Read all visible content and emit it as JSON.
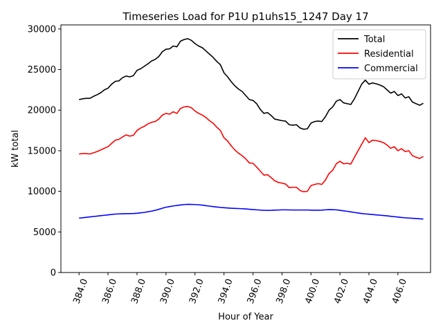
{
  "chart_data": {
    "type": "line",
    "title": "Timeseries Load for P1U p1uhs15_1247  Day 17",
    "xlabel": "Hour of Year",
    "ylabel": "kW total",
    "xlim": [
      382.75,
      408.25
    ],
    "ylim": [
      0,
      30500
    ],
    "xticks": [
      384,
      386,
      388,
      390,
      392,
      394,
      396,
      398,
      400,
      402,
      404,
      406
    ],
    "xtick_labels": [
      "384.0",
      "386.0",
      "388.0",
      "390.0",
      "392.0",
      "394.0",
      "396.0",
      "398.0",
      "400.0",
      "402.0",
      "404.0",
      "406.0"
    ],
    "yticks": [
      0,
      5000,
      10000,
      15000,
      20000,
      25000,
      30000
    ],
    "ytick_labels": [
      "0",
      "5000",
      "10000",
      "15000",
      "20000",
      "25000",
      "30000"
    ],
    "legend_position": "top-right",
    "x": [
      384.0,
      384.25,
      384.5,
      384.75,
      385.0,
      385.25,
      385.5,
      385.75,
      386.0,
      386.25,
      386.5,
      386.75,
      387.0,
      387.25,
      387.5,
      387.75,
      388.0,
      388.25,
      388.5,
      388.75,
      389.0,
      389.25,
      389.5,
      389.75,
      390.0,
      390.25,
      390.5,
      390.75,
      391.0,
      391.25,
      391.5,
      391.75,
      392.0,
      392.25,
      392.5,
      392.75,
      393.0,
      393.25,
      393.5,
      393.75,
      394.0,
      394.25,
      394.5,
      394.75,
      395.0,
      395.25,
      395.5,
      395.75,
      396.0,
      396.25,
      396.5,
      396.75,
      397.0,
      397.25,
      397.5,
      397.75,
      398.0,
      398.25,
      398.5,
      398.75,
      399.0,
      399.25,
      399.5,
      399.75,
      400.0,
      400.25,
      400.5,
      400.75,
      401.0,
      401.25,
      401.5,
      401.75,
      402.0,
      402.25,
      402.5,
      402.75,
      403.0,
      403.25,
      403.5,
      403.75,
      404.0,
      404.25,
      404.5,
      404.75,
      405.0,
      405.25,
      405.5,
      405.75,
      406.0,
      406.25,
      406.5,
      406.75,
      407.0,
      407.25,
      407.5,
      407.75
    ],
    "series": [
      {
        "name": "Total",
        "color": "#000000",
        "values": [
          21300,
          21400,
          21450,
          21450,
          21700,
          21900,
          22150,
          22500,
          22700,
          23200,
          23550,
          23600,
          24000,
          24200,
          24100,
          24250,
          24900,
          25100,
          25400,
          25700,
          26050,
          26250,
          26600,
          27200,
          27500,
          27550,
          27900,
          27800,
          28500,
          28700,
          28800,
          28600,
          28200,
          27900,
          27700,
          27300,
          26900,
          26500,
          26000,
          25600,
          24600,
          24100,
          23500,
          23000,
          22600,
          22300,
          21800,
          21300,
          21200,
          20800,
          20100,
          19600,
          19700,
          19350,
          18900,
          18800,
          18700,
          18650,
          18200,
          18150,
          18200,
          17800,
          17650,
          17700,
          18400,
          18600,
          18650,
          18600,
          19200,
          20000,
          20400,
          21100,
          21300,
          20900,
          20800,
          20700,
          21400,
          22300,
          23200,
          23700,
          23200,
          23350,
          23250,
          23100,
          22900,
          22500,
          22100,
          22300,
          21800,
          22000,
          21500,
          21650,
          21000,
          20800,
          20600,
          20850
        ]
      },
      {
        "name": "Residential",
        "color": "#ff0000",
        "values": [
          14600,
          14650,
          14650,
          14600,
          14750,
          14900,
          15100,
          15300,
          15500,
          15900,
          16300,
          16400,
          16700,
          16950,
          16800,
          16900,
          17500,
          17800,
          18000,
          18300,
          18500,
          18600,
          18900,
          19400,
          19600,
          19500,
          19800,
          19600,
          20200,
          20400,
          20450,
          20300,
          19900,
          19600,
          19400,
          19100,
          18700,
          18400,
          17900,
          17500,
          16600,
          16200,
          15600,
          15100,
          14700,
          14400,
          14000,
          13500,
          13450,
          13000,
          12500,
          12000,
          12050,
          11700,
          11300,
          11100,
          11000,
          10900,
          10450,
          10500,
          10500,
          10100,
          9950,
          10000,
          10700,
          10850,
          10950,
          10850,
          11400,
          12200,
          12600,
          13400,
          13700,
          13400,
          13450,
          13350,
          14200,
          15000,
          15800,
          16600,
          16000,
          16300,
          16250,
          16150,
          16000,
          15700,
          15300,
          15500,
          15000,
          15250,
          14900,
          15000,
          14400,
          14200,
          14050,
          14300
        ]
      },
      {
        "name": "Commercial",
        "color": "#0000ff",
        "values": [
          6700,
          6750,
          6800,
          6850,
          6900,
          6950,
          7000,
          7050,
          7100,
          7150,
          7200,
          7220,
          7240,
          7250,
          7260,
          7270,
          7300,
          7350,
          7400,
          7480,
          7560,
          7660,
          7780,
          7920,
          8040,
          8120,
          8200,
          8260,
          8320,
          8370,
          8400,
          8390,
          8370,
          8350,
          8300,
          8240,
          8180,
          8120,
          8070,
          8020,
          7980,
          7950,
          7920,
          7900,
          7880,
          7860,
          7830,
          7790,
          7760,
          7720,
          7690,
          7660,
          7650,
          7660,
          7680,
          7700,
          7720,
          7720,
          7710,
          7700,
          7700,
          7700,
          7700,
          7700,
          7680,
          7670,
          7670,
          7680,
          7720,
          7750,
          7740,
          7720,
          7660,
          7600,
          7540,
          7470,
          7400,
          7330,
          7270,
          7220,
          7180,
          7140,
          7100,
          7060,
          7020,
          6980,
          6930,
          6880,
          6830,
          6780,
          6740,
          6710,
          6680,
          6650,
          6620,
          6590
        ]
      }
    ]
  }
}
